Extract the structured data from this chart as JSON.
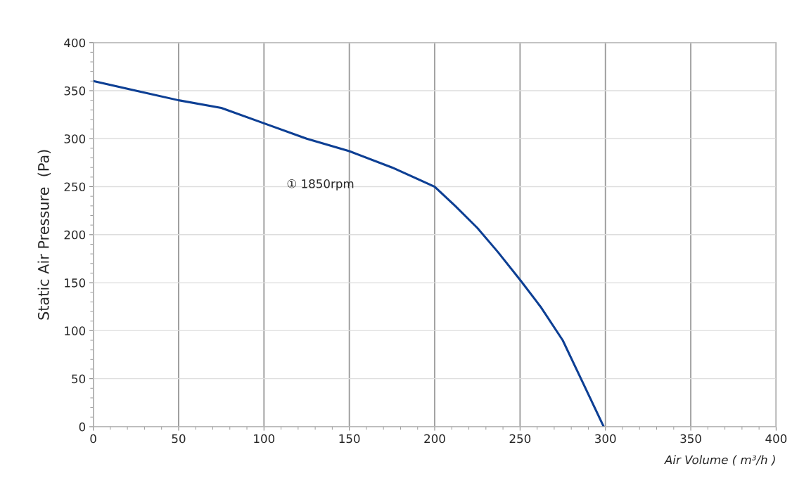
{
  "chart_data": {
    "type": "line",
    "xlabel": "Air Volume ( m³/h )",
    "ylabel": "Static Air Pressure  (Pa)",
    "xlim": [
      0,
      400
    ],
    "ylim": [
      0,
      400
    ],
    "xticks": [
      0,
      50,
      100,
      150,
      200,
      250,
      300,
      350,
      400
    ],
    "yticks": [
      0,
      50,
      100,
      150,
      200,
      250,
      300,
      350,
      400
    ],
    "grid": true,
    "marker": "none",
    "line_style": "solid",
    "series": [
      {
        "name": "① 1850rpm",
        "color": "#0d3f94",
        "x": [
          0,
          25,
          50,
          75,
          100,
          125,
          150,
          175,
          200,
          212,
          225,
          237,
          250,
          262,
          275,
          287,
          299
        ],
        "values": [
          360,
          350,
          340,
          332,
          316,
          300,
          287,
          270,
          250,
          230,
          207,
          182,
          153,
          125,
          90,
          45,
          0
        ]
      }
    ]
  }
}
